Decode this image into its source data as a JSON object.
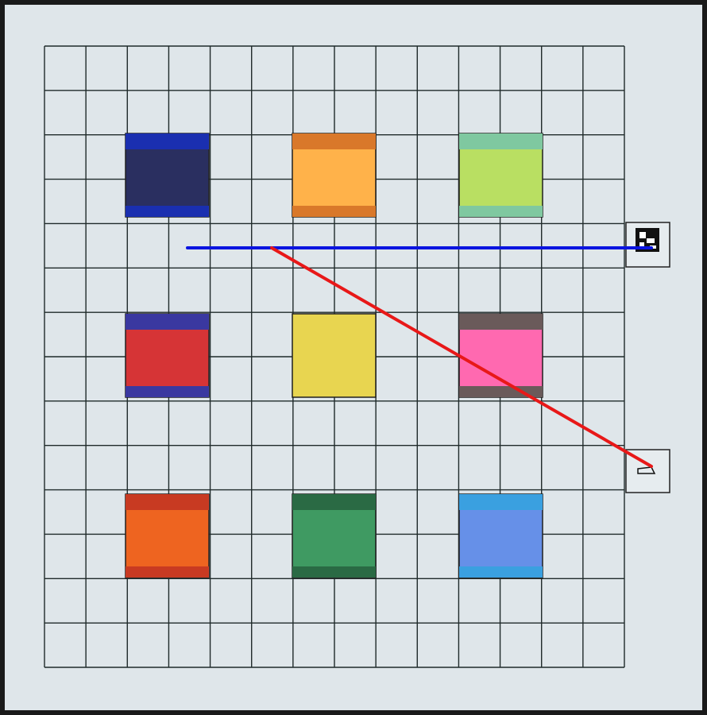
{
  "board": {
    "grid_columns": 14,
    "grid_rows": 14,
    "background_color": "#dfe6ea",
    "grid_line_color": "#1f2a2a"
  },
  "colored_squares": [
    {
      "name": "navy-square",
      "row": 0,
      "col": 0,
      "color": "#2a2f60",
      "band_color": "#1a2fb0",
      "band_top": true,
      "band_bottom": true
    },
    {
      "name": "orange-light-square",
      "row": 0,
      "col": 1,
      "color": "#ffb24a",
      "band_color": "#d9782a",
      "band_top": true,
      "band_bottom": true
    },
    {
      "name": "lime-square",
      "row": 0,
      "col": 2,
      "color": "#b9df62",
      "band_color": "#7fc8a0",
      "band_top": true,
      "band_bottom": true
    },
    {
      "name": "red-square",
      "row": 1,
      "col": 0,
      "color": "#d63436",
      "band_color": "#3a38a0",
      "band_top": true,
      "band_bottom": true
    },
    {
      "name": "yellow-square",
      "row": 1,
      "col": 1,
      "color": "#e8d550",
      "band_color": "#e8d550",
      "band_top": false,
      "band_bottom": false
    },
    {
      "name": "pink-square",
      "row": 1,
      "col": 2,
      "color": "#ff69b0",
      "band_color": "#6a5a5a",
      "band_top": true,
      "band_bottom": true
    },
    {
      "name": "orange-square",
      "row": 2,
      "col": 0,
      "color": "#ee6420",
      "band_color": "#c83a22",
      "band_top": true,
      "band_bottom": true
    },
    {
      "name": "green-square",
      "row": 2,
      "col": 1,
      "color": "#3f9a62",
      "band_color": "#2a6a44",
      "band_top": true,
      "band_bottom": true
    },
    {
      "name": "blue-square",
      "row": 2,
      "col": 2,
      "color": "#6690e8",
      "band_color": "#3aa0e0",
      "band_top": true,
      "band_bottom": true
    }
  ],
  "markers": [
    {
      "name": "fiducial-marker-top",
      "icon": "aruco-marker-icon"
    },
    {
      "name": "fiducial-marker-bottom",
      "icon": "outline-marker-icon"
    }
  ],
  "lines": [
    {
      "name": "blue-line",
      "color": "#0a14e0"
    },
    {
      "name": "red-line",
      "color": "#e81818"
    }
  ]
}
